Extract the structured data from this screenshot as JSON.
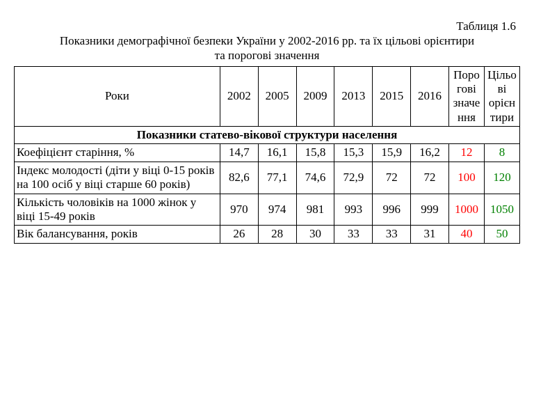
{
  "table_number": "Таблиця 1.6",
  "caption_line1": "Показники демографічної безпеки України у  2002-2016 рр. та їх цільові орієнтири",
  "caption_line2": "та порогові значення",
  "header": {
    "label": "Роки",
    "y2002": "2002",
    "y2005": "2005",
    "y2009": "2009",
    "y2013": "2013",
    "y2015": "2015",
    "y2016": "2016",
    "threshold": "Порогові значення",
    "target": "Цільові орієнтири"
  },
  "section1_title": "Показники статево-вікової структури населення",
  "rows": [
    {
      "label": "Коефіцієнт старіння, %",
      "v": [
        "14,7",
        "16,1",
        "15,8",
        "15,3",
        "15,9",
        "16,2"
      ],
      "threshold": "12",
      "target": "8"
    },
    {
      "label": "Індекс молодості (діти у віці 0-15 років на 100 осіб у віці старше 60 років)",
      "v": [
        "82,6",
        "77,1",
        "74,6",
        "72,9",
        "72",
        "72"
      ],
      "threshold": "100",
      "target": "120"
    },
    {
      "label": "Кількість чоловіків на 1000 жінок у віці 15-49 років",
      "v": [
        "970",
        "974",
        "981",
        "993",
        "996",
        "999"
      ],
      "threshold": "1000",
      "target": "1050"
    },
    {
      "label": "Вік балансування, років",
      "v": [
        "26",
        "28",
        "30",
        "33",
        "33",
        "31"
      ],
      "threshold": "40",
      "target": "50"
    }
  ],
  "colors": {
    "threshold": "#ff0000",
    "target": "#008000",
    "border": "#000000",
    "text": "#000000",
    "background": "#ffffff"
  },
  "font": {
    "family": "Times New Roman",
    "size_pt": 13
  }
}
